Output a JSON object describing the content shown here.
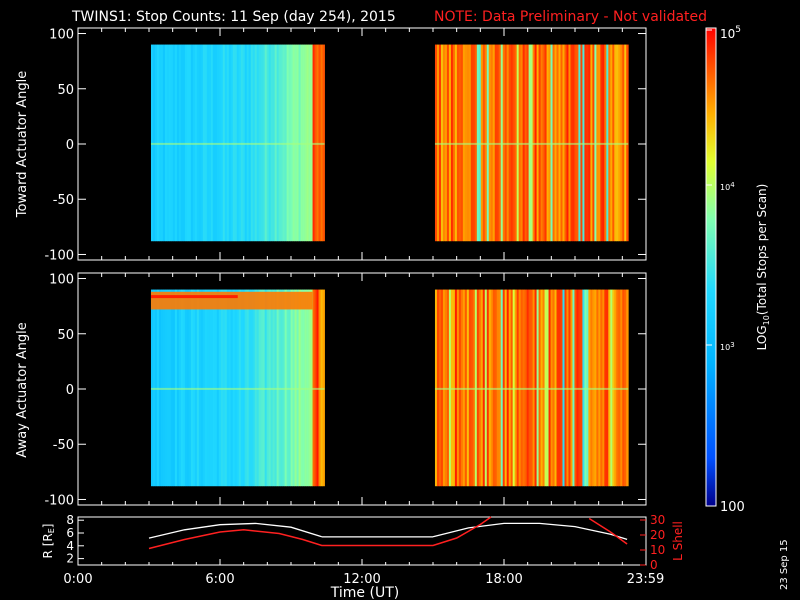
{
  "title": {
    "main": "TWINS1: Stop Counts: 11 Sep (day 254), 2015",
    "note": "NOTE: Data Preliminary - Not validated",
    "note_color": "#ff2020"
  },
  "colorbar": {
    "label": "LOG10(Total Stops per Scan)",
    "ticks": [
      "10^5",
      "10^4",
      "10^3",
      "100"
    ],
    "range": [
      100,
      100000
    ],
    "colormap": [
      "#00008c",
      "#0050ff",
      "#00b4ff",
      "#20d8ff",
      "#80ffb0",
      "#e0ff30",
      "#ffb000",
      "#ff5000",
      "#ff0000"
    ]
  },
  "stamp": "23 Sep 15",
  "chart_data": [
    {
      "type": "heatmap",
      "name": "toward",
      "ylabel": "Toward Actuator Angle",
      "ylim": [
        -105,
        105
      ],
      "yticks": [
        100,
        50,
        0,
        -50,
        -100
      ],
      "xlim_hours": [
        0,
        24
      ],
      "segments": [
        {
          "start_ut": "03:05",
          "end_ut": "10:25",
          "typical_log_counts": 3.1
        },
        {
          "start_ut": "15:05",
          "end_ut": "23:15",
          "typical_log_counts": 4.4
        }
      ],
      "angle_range": [
        -88,
        90
      ]
    },
    {
      "type": "heatmap",
      "name": "away",
      "ylabel": "Away Actuator Angle",
      "ylim": [
        -105,
        105
      ],
      "yticks": [
        100,
        50,
        0,
        -50,
        -100
      ],
      "xlim_hours": [
        0,
        24
      ],
      "segments": [
        {
          "start_ut": "03:05",
          "end_ut": "10:25",
          "typical_log_counts": 3.2
        },
        {
          "start_ut": "15:05",
          "end_ut": "23:15",
          "typical_log_counts": 4.4
        }
      ],
      "angle_range": [
        -88,
        90
      ]
    },
    {
      "type": "line",
      "name": "orbit",
      "ylabel_left": "R [RE]",
      "ylabel_right": "L Shell",
      "yticks_left": [
        8,
        6,
        4,
        2
      ],
      "yticks_right": [
        30,
        20,
        10,
        0
      ],
      "ylim_left": [
        1,
        8.5
      ],
      "ylim_right": [
        0,
        32
      ],
      "xlabel": "Time (UT)",
      "xticks": [
        "0:00",
        "6:00",
        "12:00",
        "18:00",
        "23:59"
      ],
      "xtick_hours": [
        0,
        6,
        12,
        18,
        23.98
      ],
      "series": [
        {
          "name": "R",
          "color": "#ffffff",
          "x": [
            3.0,
            4.5,
            6.0,
            7.5,
            9.0,
            10.3,
            15.0,
            16.5,
            18.0,
            19.5,
            21.0,
            22.5,
            23.2
          ],
          "y": [
            5.2,
            6.5,
            7.3,
            7.5,
            6.9,
            5.4,
            5.4,
            6.8,
            7.5,
            7.5,
            7.0,
            5.8,
            5.0
          ]
        },
        {
          "name": "L",
          "color": "#ff2020",
          "x": [
            3.0,
            4.5,
            6.0,
            7.0,
            8.5,
            9.5,
            10.3,
            15.0,
            16.0,
            17.0,
            17.45
          ],
          "y": [
            11,
            17,
            22,
            23.5,
            21,
            17,
            13,
            13,
            18,
            27,
            32
          ],
          "x2": [
            21.6,
            22.5,
            23.2
          ],
          "y2": [
            31,
            22,
            14
          ]
        }
      ]
    }
  ]
}
